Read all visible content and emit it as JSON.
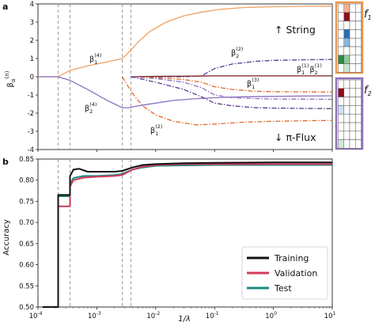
{
  "figure": {
    "panel_a_letter": "a",
    "panel_b_letter": "b",
    "string_label": "↑ String",
    "piflux_label": "↓ π-Flux",
    "f1_label": "f",
    "f1_sub": "1",
    "f2_label": "f",
    "f2_sub": "2",
    "panel_a_ylabel_main": "β",
    "panel_a_ylabel_sub": "α",
    "panel_a_ylabel_sup": "(n)",
    "colors": {
      "f1_box": "#e8974f",
      "f2_box": "#9070b8",
      "orange": "#f0a060",
      "purple": "#8a70c0",
      "dark_orange": "#e06a2a",
      "dark_purple": "#5a3a90",
      "dark_red": "#7a1f1f",
      "training": "#111111",
      "validation": "#d33a5a",
      "test": "#1a8a80"
    },
    "f1_grid": [
      [
        "#ffffff",
        "#f5b090",
        "#ffffff",
        "#ffffff"
      ],
      [
        "#ffffff",
        "#8a0f1a",
        "#ffffff",
        "#ffffff"
      ],
      [
        "#ffffff",
        "#ffffff",
        "#ffffff",
        "#ffffff"
      ],
      [
        "#ffffff",
        "#2a6fb0",
        "#ffffff",
        "#ffffff"
      ],
      [
        "#ffffff",
        "#8ab8e0",
        "#ffffff",
        "#ffffff"
      ],
      [
        "#ffffff",
        "#ffffff",
        "#ffffff",
        "#ffffff"
      ],
      [
        "#2a8a4a",
        "#8fca9a",
        "#ffffff",
        "#ffffff"
      ],
      [
        "#ffffff",
        "#c9e8cf",
        "#ffffff",
        "#ffffff"
      ]
    ],
    "f2_grid": [
      [
        "#ffffff",
        "#ffffff",
        "#ffffff",
        "#ffffff"
      ],
      [
        "#8a0f1a",
        "#ffffff",
        "#ffffff",
        "#ffffff"
      ],
      [
        "#ffffff",
        "#ffffff",
        "#ffffff",
        "#ffffff"
      ],
      [
        "#cfe0f2",
        "#ffffff",
        "#ffffff",
        "#ffffff"
      ],
      [
        "#ffffff",
        "#ffffff",
        "#ffffff",
        "#ffffff"
      ],
      [
        "#ffffff",
        "#ffffff",
        "#ffffff",
        "#ffffff"
      ],
      [
        "#ffffff",
        "#ffffff",
        "#ffffff",
        "#ffffff"
      ],
      [
        "#cfe8d4",
        "#ffffff",
        "#ffffff",
        "#ffffff"
      ]
    ]
  },
  "chart_data": [
    {
      "type": "line",
      "panel": "a",
      "xscale": "log",
      "xlim": [
        0.0001,
        10
      ],
      "ylim": [
        -4,
        4
      ],
      "yticks": [
        -4,
        -3,
        -2,
        -1,
        0,
        1,
        2,
        3,
        4
      ],
      "vlines": [
        0.00022,
        0.00035,
        0.0027,
        0.0038
      ],
      "series": [
        {
          "key": "b1_4",
          "name_main": "β",
          "name_sub": "1",
          "name_sup": "(4)",
          "color": "orange",
          "dash": "solid",
          "x": [
            0.0001,
            0.00022,
            0.00035,
            0.0007,
            0.0015,
            0.0027,
            0.0035,
            0.005,
            0.008,
            0.015,
            0.03,
            0.06,
            0.12,
            0.3,
            1,
            3,
            10
          ],
          "y": [
            0,
            0,
            0.35,
            0.6,
            0.82,
            1.0,
            1.35,
            1.9,
            2.5,
            3.0,
            3.35,
            3.55,
            3.7,
            3.8,
            3.85,
            3.87,
            3.88
          ]
        },
        {
          "key": "b2_4",
          "name_main": "β",
          "name_sub": "2",
          "name_sup": "(4)",
          "color": "purple",
          "dash": "solid",
          "x": [
            0.0001,
            0.00022,
            0.00035,
            0.0007,
            0.0015,
            0.0027,
            0.0035,
            0.005,
            0.01,
            0.02,
            0.05,
            0.1,
            0.3,
            1,
            3,
            10
          ],
          "y": [
            0,
            0,
            -0.2,
            -0.7,
            -1.3,
            -1.7,
            -1.7,
            -1.6,
            -1.45,
            -1.3,
            -1.2,
            -1.15,
            -1.1,
            -1.08,
            -1.06,
            -1.05
          ]
        },
        {
          "key": "b2_2",
          "name_main": "β",
          "name_sub": "2",
          "name_sup": "(2)",
          "color": "dark_purple",
          "dash": "dashdot",
          "x": [
            0.0038,
            0.01,
            0.03,
            0.06,
            0.1,
            0.2,
            0.5,
            1,
            3,
            10
          ],
          "y": [
            0,
            0,
            0,
            0.05,
            0.45,
            0.7,
            0.85,
            0.9,
            0.93,
            0.95
          ]
        },
        {
          "key": "b1_1b2_1",
          "name_main": "β",
          "name_sub": "1",
          "name_sup": "(1)",
          "name2_main": "β",
          "name2_sub": "2",
          "name2_sup": "(1)",
          "color": "dark_red",
          "dash": "solid",
          "x": [
            0.0038,
            0.01,
            0.05,
            0.1,
            0.5,
            1,
            3,
            10
          ],
          "y": [
            0,
            0.02,
            0.04,
            0.05,
            0.05,
            0.05,
            0.05,
            0.05
          ]
        },
        {
          "key": "b1_3",
          "name_main": "β",
          "name_sub": "1",
          "name_sup": "(3)",
          "color": "dark_orange",
          "dash": "dashdot",
          "x": [
            0.0038,
            0.01,
            0.03,
            0.06,
            0.1,
            0.2,
            0.5,
            1,
            3,
            10
          ],
          "y": [
            0,
            -0.05,
            -0.15,
            -0.3,
            -0.55,
            -0.7,
            -0.8,
            -0.82,
            -0.83,
            -0.84
          ]
        },
        {
          "key": "b_purple_mid",
          "color": "purple",
          "dash": "dashdot",
          "x": [
            0.0038,
            0.01,
            0.03,
            0.06,
            0.1,
            0.2,
            0.5,
            1,
            3,
            10
          ],
          "y": [
            0,
            -0.1,
            -0.3,
            -0.6,
            -1.0,
            -1.15,
            -1.2,
            -1.22,
            -1.23,
            -1.24
          ]
        },
        {
          "key": "b_darkpurple_low",
          "color": "dark_purple",
          "dash": "dashdot",
          "x": [
            0.0038,
            0.01,
            0.03,
            0.06,
            0.1,
            0.2,
            0.5,
            1,
            3,
            10
          ],
          "y": [
            0,
            -0.3,
            -0.7,
            -1.1,
            -1.45,
            -1.6,
            -1.7,
            -1.72,
            -1.74,
            -1.75
          ]
        },
        {
          "key": "b1_2",
          "name_main": "β",
          "name_sub": "1",
          "name_sup": "(2)",
          "color": "dark_orange",
          "dash": "dashdot",
          "x": [
            0.0027,
            0.004,
            0.006,
            0.01,
            0.02,
            0.05,
            0.1,
            0.3,
            1,
            3,
            10
          ],
          "y": [
            0,
            -0.9,
            -1.6,
            -2.1,
            -2.45,
            -2.65,
            -2.6,
            -2.5,
            -2.45,
            -2.42,
            -2.4
          ]
        }
      ]
    },
    {
      "type": "line",
      "panel": "b",
      "xscale": "log",
      "xlim": [
        0.0001,
        10
      ],
      "ylim": [
        0.5,
        0.85
      ],
      "ylabel": "Accuracy",
      "xlabel": "1/λ",
      "yticks": [
        "0.50",
        "0.55",
        "0.60",
        "0.65",
        "0.70",
        "0.75",
        "0.80",
        "0.85"
      ],
      "xticks": [
        {
          "base": "10",
          "exp": "-4"
        },
        {
          "base": "10",
          "exp": "-3"
        },
        {
          "base": "10",
          "exp": "-2"
        },
        {
          "base": "10",
          "exp": "-1"
        },
        {
          "base": "10",
          "exp": "0"
        },
        {
          "base": "10",
          "exp": "1"
        }
      ],
      "vlines": [
        0.00022,
        0.00035,
        0.0027,
        0.0038
      ],
      "series": [
        {
          "name": "Training",
          "color": "training",
          "x": [
            0.00012,
            0.00022,
            0.00022,
            0.00035,
            0.00035,
            0.0004,
            0.0005,
            0.0007,
            0.001,
            0.002,
            0.0027,
            0.004,
            0.006,
            0.01,
            0.03,
            0.1,
            1,
            10
          ],
          "y": [
            0.5,
            0.5,
            0.765,
            0.765,
            0.81,
            0.825,
            0.827,
            0.82,
            0.82,
            0.82,
            0.822,
            0.83,
            0.836,
            0.838,
            0.84,
            0.841,
            0.842,
            0.842
          ]
        },
        {
          "name": "Validation",
          "color": "validation",
          "x": [
            0.00012,
            0.00022,
            0.00022,
            0.00035,
            0.00035,
            0.0004,
            0.0006,
            0.001,
            0.002,
            0.0027,
            0.004,
            0.006,
            0.01,
            0.03,
            0.1,
            1,
            10
          ],
          "y": [
            0.5,
            0.5,
            0.738,
            0.738,
            0.785,
            0.8,
            0.806,
            0.808,
            0.81,
            0.812,
            0.825,
            0.832,
            0.836,
            0.838,
            0.838,
            0.838,
            0.838
          ]
        },
        {
          "name": "Test",
          "color": "test",
          "x": [
            0.00012,
            0.00022,
            0.00022,
            0.00035,
            0.00035,
            0.0004,
            0.0006,
            0.001,
            0.002,
            0.0027,
            0.004,
            0.006,
            0.01,
            0.03,
            0.1,
            1,
            10
          ],
          "y": [
            0.5,
            0.5,
            0.762,
            0.762,
            0.79,
            0.805,
            0.81,
            0.81,
            0.812,
            0.815,
            0.825,
            0.83,
            0.834,
            0.835,
            0.836,
            0.836,
            0.836
          ]
        }
      ]
    }
  ]
}
